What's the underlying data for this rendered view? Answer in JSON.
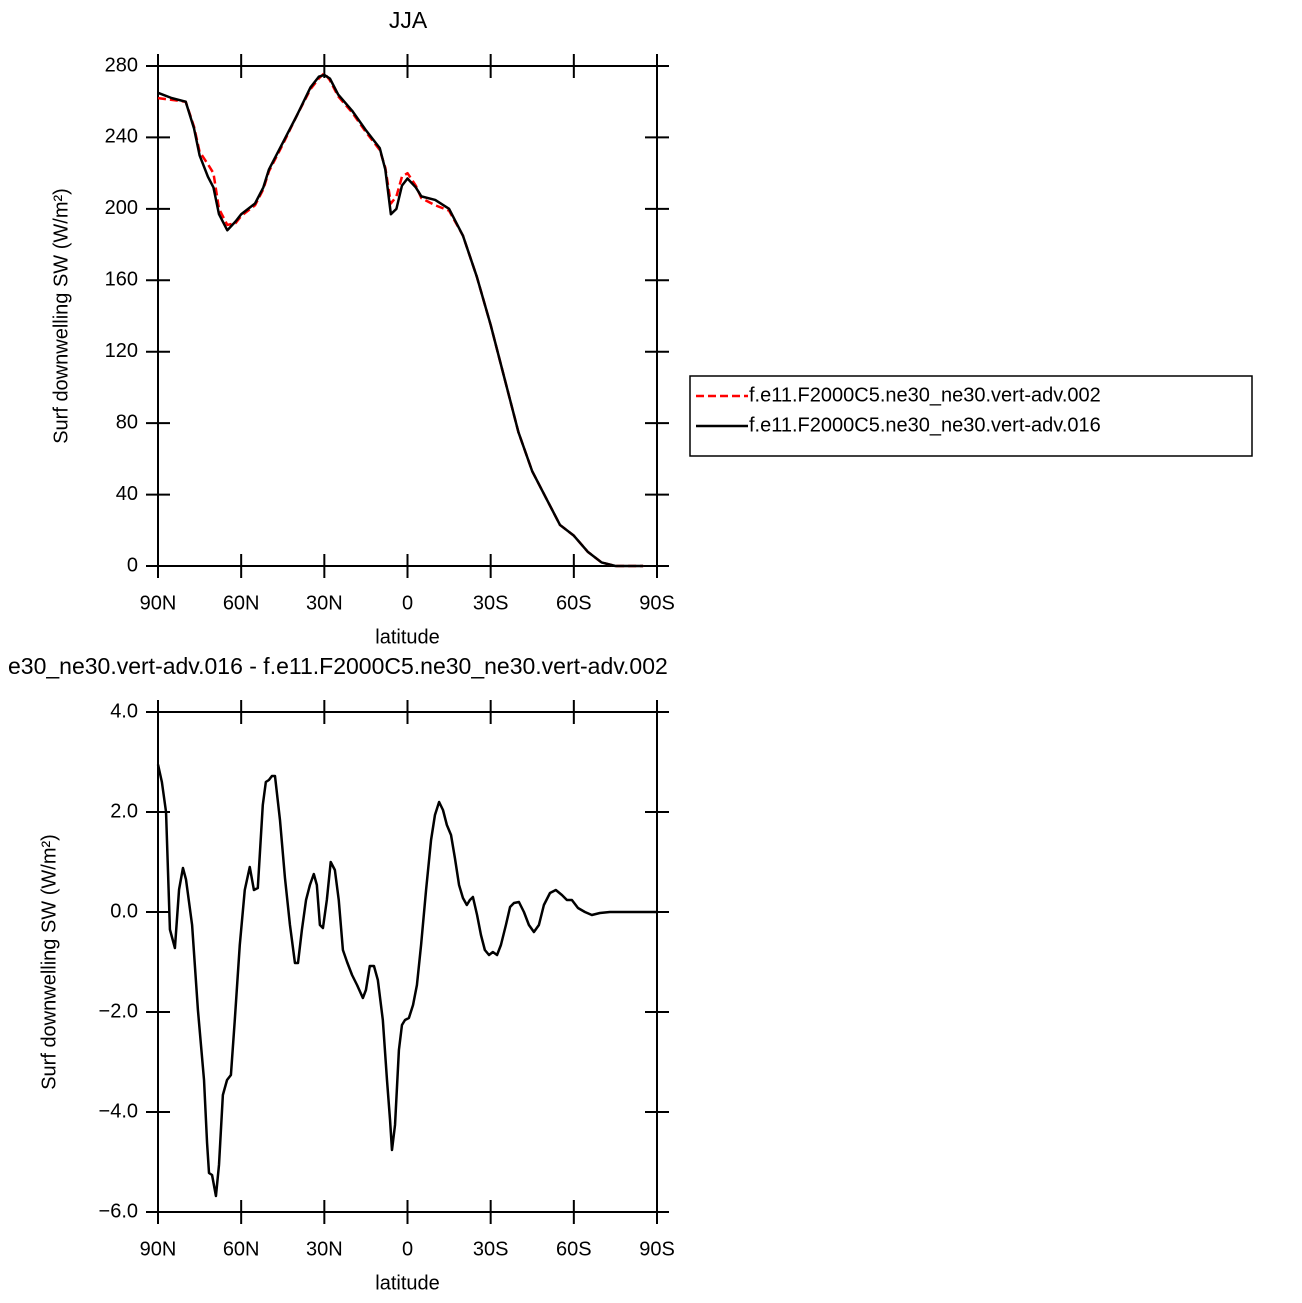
{
  "chart_data": [
    {
      "type": "line",
      "title": "JJA",
      "xlabel": "latitude",
      "ylabel": "Surf downwelling SW (W/m²)",
      "xlim": [
        90,
        -90
      ],
      "xticks": [
        {
          "value": 90,
          "label": "90N"
        },
        {
          "value": 60,
          "label": "60N"
        },
        {
          "value": 30,
          "label": "30N"
        },
        0,
        {
          "value": -30,
          "label": "30S"
        },
        {
          "value": -60,
          "label": "60S"
        },
        {
          "value": -90,
          "label": "90S"
        }
      ],
      "ylim": [
        0,
        280
      ],
      "yticks": [
        0,
        40,
        80,
        120,
        160,
        200,
        240,
        280
      ],
      "legend": "right",
      "x": [
        90,
        85,
        80,
        77,
        75,
        72,
        70,
        68,
        65,
        62,
        60,
        55,
        52,
        50,
        45,
        40,
        35,
        32,
        30,
        28,
        25,
        20,
        15,
        10,
        8,
        6,
        4,
        2,
        0,
        -3,
        -5,
        -10,
        -15,
        -20,
        -25,
        -30,
        -35,
        -40,
        -45,
        -50,
        -55,
        -60,
        -65,
        -70,
        -75,
        -80,
        -85
      ],
      "series": [
        {
          "name": "f.e11.F2000C5.ne30_ne30.vert-adv.002",
          "color": "#ff0000",
          "linestyle": "dashed",
          "values": [
            262,
            261,
            260,
            246,
            232,
            225,
            220,
            200,
            191,
            192,
            196,
            202,
            211,
            221,
            236,
            252,
            267,
            273,
            276,
            272,
            263,
            254,
            243,
            233,
            223,
            203,
            207,
            218,
            220,
            213,
            206,
            202,
            199,
            185,
            162,
            135,
            105,
            75,
            53,
            38,
            23,
            17,
            8,
            2,
            0,
            0,
            0
          ]
        },
        {
          "name": "f.e11.F2000C5.ne30_ne30.vert-adv.016",
          "color": "#000000",
          "linestyle": "solid",
          "values": [
            265,
            262,
            260,
            245,
            230,
            218,
            212,
            197,
            188,
            193,
            197,
            203,
            212,
            222,
            237,
            252,
            268,
            274,
            275,
            273,
            264,
            255,
            244,
            234,
            222,
            197,
            200,
            213,
            217,
            212,
            207,
            205,
            200,
            185,
            162,
            135,
            105,
            75,
            53,
            38,
            23,
            17,
            8,
            2,
            0,
            0,
            0
          ]
        }
      ]
    },
    {
      "type": "line",
      "title": "e30_ne30.vert-adv.016 - f.e11.F2000C5.ne30_ne30.vert-adv.002",
      "xlabel": "latitude",
      "ylabel": "Surf downwelling SW (W/m²)",
      "xlim": [
        90,
        -90
      ],
      "xticks": [
        {
          "value": 90,
          "label": "90N"
        },
        {
          "value": 60,
          "label": "60N"
        },
        {
          "value": 30,
          "label": "30N"
        },
        0,
        {
          "value": -30,
          "label": "30S"
        },
        {
          "value": -60,
          "label": "60S"
        },
        {
          "value": -90,
          "label": "90S"
        }
      ],
      "ylim": [
        -6,
        4
      ],
      "yticks": [
        {
          "value": -6,
          "label": "−6.0"
        },
        {
          "value": -4,
          "label": "−4.0"
        },
        {
          "value": -2,
          "label": "−2.0"
        },
        {
          "value": 0,
          "label": "0.0"
        },
        {
          "value": 2,
          "label": "2.0"
        },
        {
          "value": 4,
          "label": "4.0"
        }
      ],
      "x": [
        90,
        88.6,
        87.1,
        85.7,
        83.9,
        82.4,
        81.0,
        79.9,
        77.7,
        75.6,
        73.4,
        72.3,
        71.6,
        70.5,
        69.1,
        68.0,
        66.6,
        65.1,
        63.7,
        62.3,
        60.5,
        58.7,
        56.9,
        55.4,
        54.0,
        52.2,
        51.1,
        50.0,
        48.9,
        47.8,
        46.0,
        44.2,
        42.4,
        40.6,
        39.5,
        38.1,
        36.6,
        35.2,
        33.8,
        32.7,
        31.6,
        30.5,
        29.1,
        27.7,
        26.2,
        24.8,
        23.3,
        21.8,
        20.0,
        18.2,
        16.1,
        15.0,
        13.6,
        12.1,
        10.7,
        8.9,
        7.4,
        6.3,
        5.6,
        4.5,
        3.1,
        2.0,
        0.9,
        -0.5,
        -2.0,
        -3.4,
        -4.9,
        -6.7,
        -8.5,
        -9.9,
        -11.4,
        -12.8,
        -14.2,
        -15.7,
        -17.1,
        -18.6,
        -20.0,
        -21.4,
        -22.5,
        -23.6,
        -25.1,
        -26.5,
        -27.9,
        -29.4,
        -30.8,
        -32.3,
        -33.7,
        -35.5,
        -37.0,
        -38.4,
        -40.2,
        -42.0,
        -43.8,
        -45.6,
        -47.4,
        -49.2,
        -51.4,
        -53.5,
        -55.7,
        -57.5,
        -59.3,
        -61.5,
        -64.0,
        -66.5,
        -69.4,
        -73.0,
        -90
      ],
      "series": [
        {
          "color": "#000000",
          "linestyle": "solid",
          "values": [
            2.95,
            2.6,
            2.0,
            -0.35,
            -0.72,
            0.45,
            0.88,
            0.65,
            -0.26,
            -1.96,
            -3.36,
            -4.62,
            -5.22,
            -5.26,
            -5.68,
            -5.06,
            -3.66,
            -3.36,
            -3.26,
            -2.16,
            -0.66,
            0.44,
            0.9,
            0.44,
            0.48,
            2.14,
            2.6,
            2.64,
            2.72,
            2.72,
            1.84,
            0.68,
            -0.26,
            -1.02,
            -1.02,
            -0.36,
            0.24,
            0.54,
            0.76,
            0.54,
            -0.26,
            -0.32,
            0.24,
            1.0,
            0.84,
            0.24,
            -0.76,
            -1.0,
            -1.26,
            -1.46,
            -1.72,
            -1.56,
            -1.08,
            -1.08,
            -1.36,
            -2.16,
            -3.36,
            -4.16,
            -4.76,
            -4.26,
            -2.76,
            -2.26,
            -2.16,
            -2.12,
            -1.86,
            -1.46,
            -0.66,
            0.44,
            1.44,
            1.94,
            2.2,
            2.04,
            1.74,
            1.54,
            1.08,
            0.54,
            0.28,
            0.14,
            0.24,
            0.3,
            -0.06,
            -0.46,
            -0.76,
            -0.86,
            -0.8,
            -0.86,
            -0.66,
            -0.26,
            0.1,
            0.18,
            0.2,
            0.0,
            -0.26,
            -0.4,
            -0.26,
            0.14,
            0.38,
            0.44,
            0.34,
            0.24,
            0.24,
            0.08,
            0.0,
            -0.06,
            -0.02,
            0.0,
            0.0
          ]
        }
      ]
    }
  ]
}
